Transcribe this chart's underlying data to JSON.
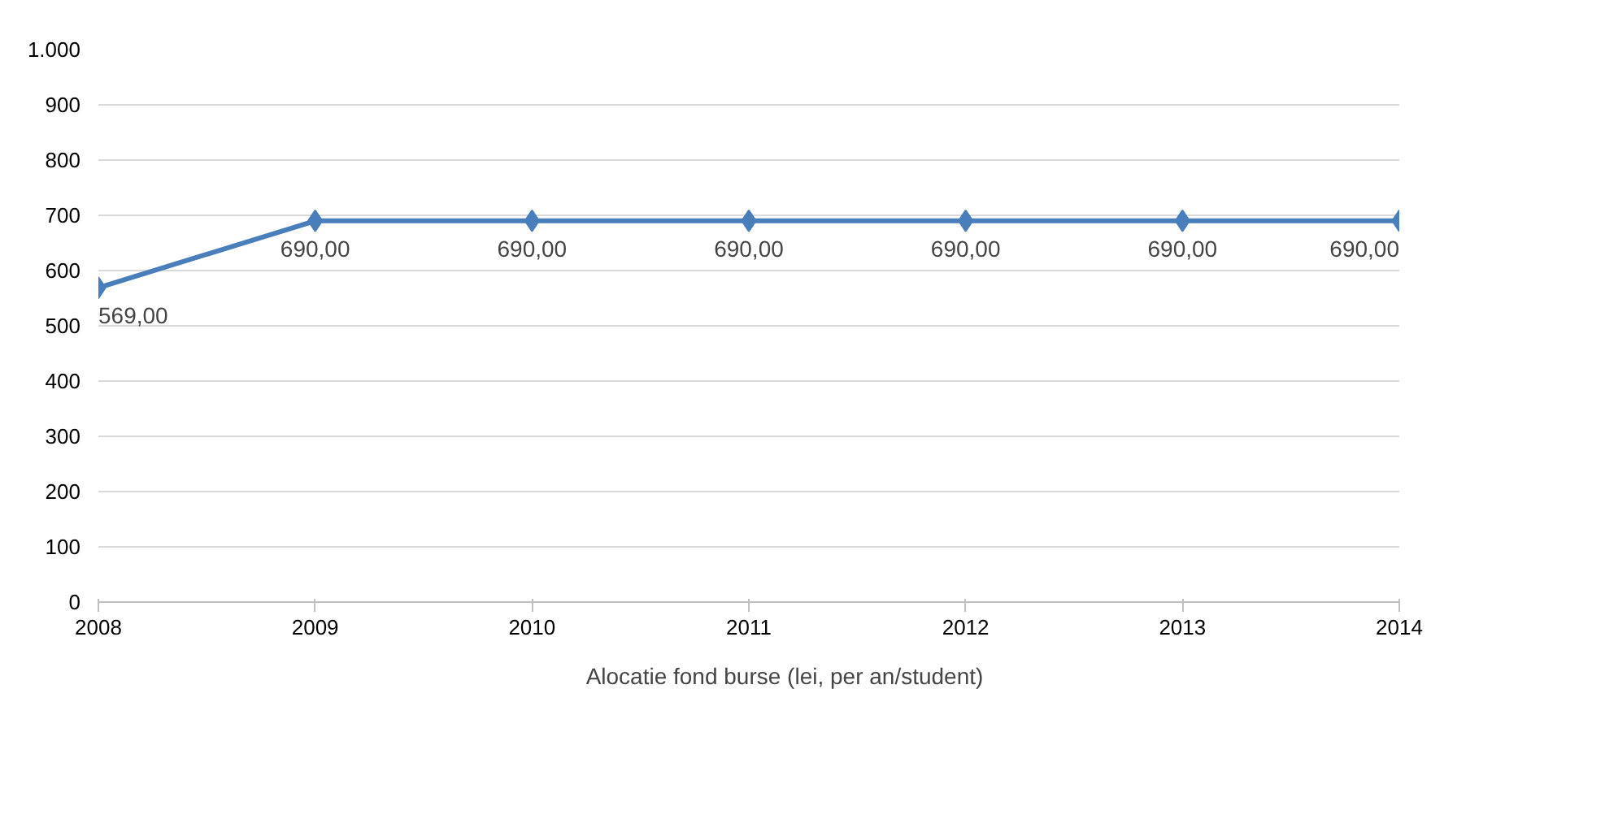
{
  "chart_data": {
    "type": "line",
    "x": [
      2008,
      2009,
      2010,
      2011,
      2012,
      2013,
      2014
    ],
    "series": [
      {
        "name": "Alocatie fond burse (lei, per an/student)",
        "color": "#4a7ebb",
        "values": [
          569,
          690,
          690,
          690,
          690,
          690,
          690
        ],
        "value_labels": [
          "569,00",
          "690,00",
          "690,00",
          "690,00",
          "690,00",
          "690,00",
          "690,00"
        ]
      }
    ],
    "xlim": [
      2008,
      2014
    ],
    "xticks": [
      2008,
      2009,
      2010,
      2011,
      2012,
      2013,
      2014
    ],
    "ylim": [
      0,
      1000
    ],
    "yticks": [
      0,
      100,
      200,
      300,
      400,
      500,
      600,
      700,
      800,
      900,
      {
        "value": 1000,
        "label": "1.000"
      }
    ],
    "grid": "y",
    "legend": "bottom",
    "marker": "diamond",
    "line_style": "solid"
  }
}
